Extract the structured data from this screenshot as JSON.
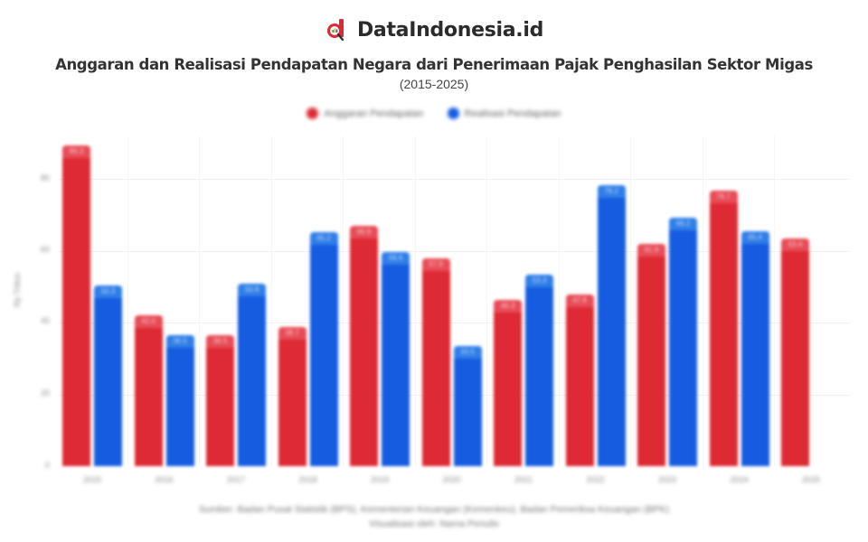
{
  "header": {
    "brand_name": "DataIndonesia.id",
    "logo_icon": "magnifier-chart-logo",
    "title": "Anggaran dan Realisasi Pendapatan Negara dari Penerimaan Pajak Penghasilan Sektor Migas",
    "subtitle": "(2015-2025)"
  },
  "legend": {
    "items": [
      {
        "label": "Anggaran Pendapatan",
        "color": "#de2a34"
      },
      {
        "label": "Realisasi Pendapatan",
        "color": "#165ce0"
      }
    ]
  },
  "axis": {
    "ytitle": "Rp Triliun",
    "yticks": [
      "80",
      "60",
      "40",
      "20",
      "0"
    ]
  },
  "footer": {
    "line1": "Sumber: Badan Pusat Statistik (BPS), Kementerian Keuangan (Kemenkeu), Badan Pemeriksa Keuangan (BPK)",
    "line2": "Visualisasi oleh: Nama Penulis"
  },
  "chart_data": {
    "type": "bar",
    "title": "Anggaran dan Realisasi Pendapatan Negara dari Penerimaan Pajak Penghasilan Sektor Migas",
    "subtitle": "(2015-2025)",
    "xlabel": "",
    "ylabel": "Rp Triliun",
    "ylim": [
      0,
      90
    ],
    "yticks": [
      0,
      20,
      40,
      60,
      80
    ],
    "grid": true,
    "legend_position": "top",
    "categories": [
      "2015",
      "2016",
      "2017",
      "2018",
      "2019",
      "2020",
      "2021",
      "2022",
      "2023",
      "2024",
      "2025"
    ],
    "series": [
      {
        "name": "Anggaran Pendapatan",
        "color": "#de2a34",
        "values": [
          89.3,
          42.0,
          36.5,
          38.7,
          66.9,
          57.9,
          46.3,
          47.8,
          61.9,
          76.7,
          63.4
        ]
      },
      {
        "name": "Realisasi Pendapatan",
        "color": "#165ce0",
        "values": [
          50.3,
          36.5,
          50.8,
          65.2,
          59.6,
          33.5,
          53.3,
          78.2,
          69.2,
          65.4,
          null
        ]
      }
    ]
  }
}
